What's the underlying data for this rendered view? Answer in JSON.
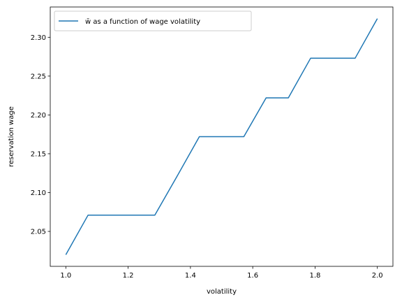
{
  "chart_data": {
    "type": "line",
    "title": "",
    "xlabel": "volatility",
    "ylabel": "reservation wage",
    "xlim": [
      0.95,
      2.05
    ],
    "ylim": [
      2.005,
      2.339
    ],
    "xticks": [
      1.0,
      1.2,
      1.4,
      1.6,
      1.8,
      2.0
    ],
    "xtick_labels": [
      "1.0",
      "1.2",
      "1.4",
      "1.6",
      "1.8",
      "2.0"
    ],
    "yticks": [
      2.05,
      2.1,
      2.15,
      2.2,
      2.25,
      2.3
    ],
    "ytick_labels": [
      "2.05",
      "2.10",
      "2.15",
      "2.20",
      "2.25",
      "2.30"
    ],
    "grid": false,
    "legend_position": "upper-left",
    "series": [
      {
        "name": "w̄ as a function of wage volatility",
        "color": "#1f77b4",
        "x": [
          1.0,
          1.0714,
          1.1429,
          1.2143,
          1.2857,
          1.3571,
          1.4286,
          1.5,
          1.5714,
          1.6429,
          1.7143,
          1.7857,
          1.8571,
          1.9286,
          2.0
        ],
        "y": [
          2.02,
          2.071,
          2.071,
          2.071,
          2.071,
          2.121,
          2.172,
          2.172,
          2.172,
          2.222,
          2.222,
          2.273,
          2.273,
          2.273,
          2.324
        ]
      }
    ]
  }
}
